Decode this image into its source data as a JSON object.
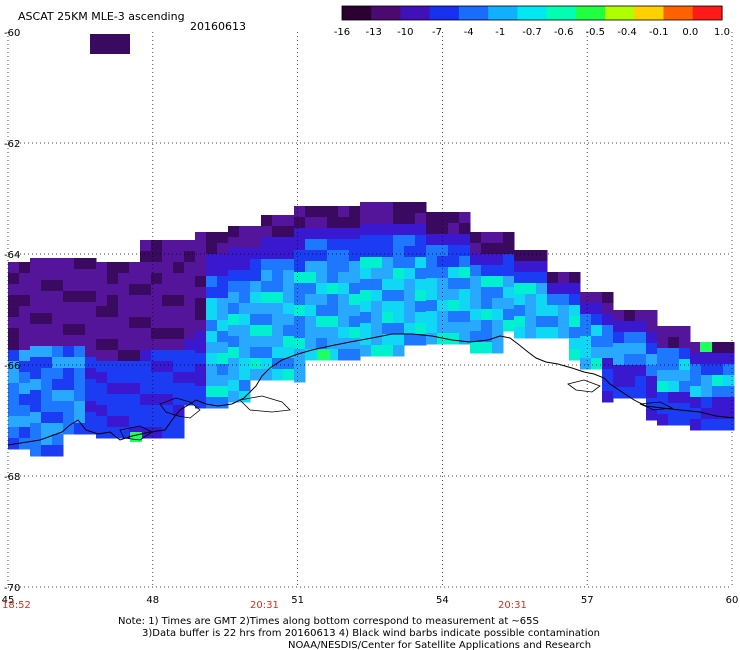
{
  "header": {
    "title": "ASCAT 25KM MLE-3 ascending",
    "date": "20160613"
  },
  "colorbar": {
    "ticks": [
      "-16",
      "-13",
      "-10",
      "-7",
      "-4",
      "-1",
      "-0.7",
      "-0.6",
      "-0.5",
      "-0.4",
      "-0.1",
      "0.0",
      "1.0"
    ],
    "colors": [
      "#2a0030",
      "#4a0a70",
      "#4010b8",
      "#1830f0",
      "#1a6cff",
      "#10b0ff",
      "#00e8f0",
      "#00ffb0",
      "#20ff40",
      "#b0ff00",
      "#ffd000",
      "#ff6000",
      "#ff1a1a"
    ]
  },
  "axes": {
    "x_ticks": [
      "45",
      "48",
      "51",
      "54",
      "57",
      "60"
    ],
    "y_ticks": [
      "-60",
      "-62",
      "-64",
      "-66",
      "-68",
      "-70"
    ]
  },
  "pass_times": [
    "18:52",
    "20:31",
    "20:31"
  ],
  "notes": {
    "line1": "Note: 1) Times are GMT 2)Times along bottom correspond to measurement at ~65S",
    "line2": "3)Data buffer is 22 hrs from 20160613 4) Black wind barbs indicate possible contamination",
    "line3": "NOAA/NESDIS/Center for Satellite Applications and Research"
  },
  "map_colors": {
    "deep_purple": "#3a0a60",
    "purple": "#55159a",
    "indigo": "#3a18d0",
    "blue": "#1c3cf4",
    "mid_blue": "#1e78ff",
    "light_blue": "#28a8ff",
    "cyan": "#10d8f4",
    "aqua": "#00f0d0",
    "green": "#20ff60",
    "coast": "#000000"
  }
}
